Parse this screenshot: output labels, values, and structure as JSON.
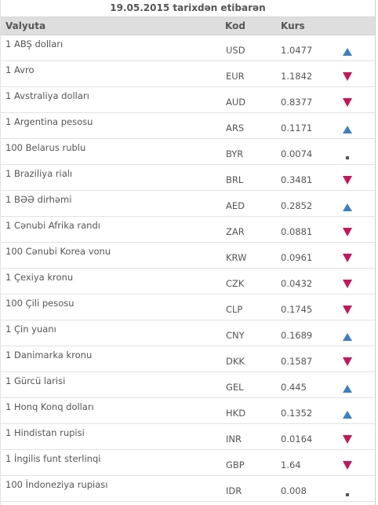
{
  "header": {
    "date_title": "19.05.2015 tarixdən etibarən"
  },
  "columns": {
    "currency": "Valyuta",
    "code": "Kod",
    "rate": "Kurs"
  },
  "colors": {
    "up": "#3f7fc1",
    "down": "#c2185b",
    "unchanged": "#555555",
    "header_bg": "#dedede"
  },
  "rows": [
    {
      "name": "1 ABŞ dolları",
      "code": "USD",
      "rate": "1.0477",
      "trend": "up"
    },
    {
      "name": "1 Avro",
      "code": "EUR",
      "rate": "1.1842",
      "trend": "down"
    },
    {
      "name": "1 Avstraliya dolları",
      "code": "AUD",
      "rate": "0.8377",
      "trend": "down"
    },
    {
      "name": "1 Argentina pesosu",
      "code": "ARS",
      "rate": "0.1171",
      "trend": "up"
    },
    {
      "name": "100 Belarus rublu",
      "code": "BYR",
      "rate": "0.0074",
      "trend": "same"
    },
    {
      "name": "1 Braziliya rialı",
      "code": "BRL",
      "rate": "0.3481",
      "trend": "down"
    },
    {
      "name": "1 BƏƏ dirhəmi",
      "code": "AED",
      "rate": "0.2852",
      "trend": "up"
    },
    {
      "name": "1 Cənubi Afrika randı",
      "code": "ZAR",
      "rate": "0.0881",
      "trend": "down"
    },
    {
      "name": "100 Cənubi Korea vonu",
      "code": "KRW",
      "rate": "0.0961",
      "trend": "down"
    },
    {
      "name": "1 Çexiya kronu",
      "code": "CZK",
      "rate": "0.0432",
      "trend": "down"
    },
    {
      "name": "100 Çili pesosu",
      "code": "CLP",
      "rate": "0.1745",
      "trend": "down"
    },
    {
      "name": "1 Çin yuanı",
      "code": "CNY",
      "rate": "0.1689",
      "trend": "up"
    },
    {
      "name": "1 Danimarka kronu",
      "code": "DKK",
      "rate": "0.1587",
      "trend": "down"
    },
    {
      "name": "1 Gürcü larisi",
      "code": "GEL",
      "rate": "0.445",
      "trend": "up"
    },
    {
      "name": "1 Honq Konq dolları",
      "code": "HKD",
      "rate": "0.1352",
      "trend": "up"
    },
    {
      "name": "1 Hindistan rupisi",
      "code": "INR",
      "rate": "0.0164",
      "trend": "down"
    },
    {
      "name": "1 İngilis funt sterlinqi",
      "code": "GBP",
      "rate": "1.64",
      "trend": "down"
    },
    {
      "name": "100 İndoneziya rupiası",
      "code": "IDR",
      "rate": "0.008",
      "trend": "same"
    }
  ]
}
